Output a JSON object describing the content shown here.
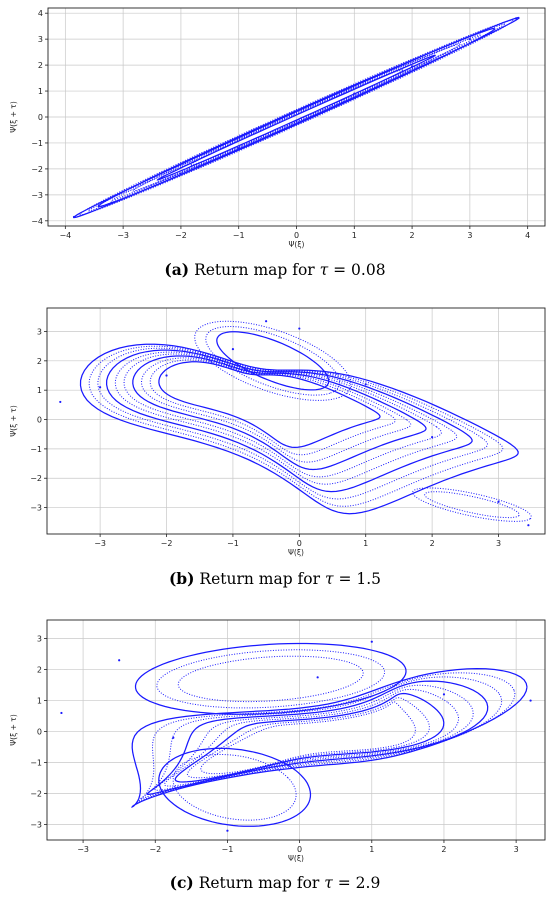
{
  "chart_data": [
    {
      "type": "scatter",
      "xlabel": "Ψ(ξ)",
      "ylabel": "Ψ(ξ + τ)",
      "xlim": [
        -4.3,
        4.3
      ],
      "ylim": [
        -4.2,
        4.2
      ],
      "xticks": [
        -4,
        -3,
        -2,
        -1,
        0,
        1,
        2,
        3,
        4
      ],
      "yticks": [
        -4,
        -3,
        -2,
        -1,
        0,
        1,
        2,
        3,
        4
      ],
      "grid": true,
      "color": "#1a1aff",
      "tau": 0.08,
      "caption": {
        "label": "(a)",
        "text": " Return map for ",
        "symbol": "τ",
        "value": " = 0.08"
      },
      "series": [
        {
          "x": [
            -3.85,
            -3.2,
            -2.0,
            -1.0,
            0.0,
            1.0,
            2.0,
            3.0,
            3.8
          ],
          "y": [
            -3.85,
            -3.3,
            -2.2,
            -1.2,
            -0.15,
            0.9,
            1.95,
            3.0,
            3.8
          ]
        }
      ]
    },
    {
      "type": "scatter",
      "xlabel": "Ψ(ξ)",
      "ylabel": "Ψ(ξ + τ)",
      "xlim": [
        -3.8,
        3.7
      ],
      "ylim": [
        -3.9,
        3.8
      ],
      "xticks": [
        -3,
        -2,
        -1,
        0,
        1,
        2,
        3
      ],
      "yticks": [
        -3,
        -2,
        -1,
        0,
        1,
        2,
        3
      ],
      "grid": true,
      "color": "#1a1aff",
      "tau": 1.5,
      "caption": {
        "label": "(b)",
        "text": " Return map for ",
        "symbol": "τ",
        "value": " = 1.5"
      },
      "series": [
        {
          "x": [
            -3.6,
            -3.0,
            -2.0,
            -1.0,
            -0.5,
            0.0,
            1.0,
            2.0,
            3.0,
            3.45
          ],
          "y": [
            0.6,
            1.1,
            1.5,
            2.4,
            3.35,
            3.1,
            1.2,
            -0.6,
            -2.8,
            -3.6
          ]
        }
      ]
    },
    {
      "type": "scatter",
      "xlabel": "Ψ(ξ)",
      "ylabel": "Ψ(ξ + τ)",
      "xlim": [
        -3.5,
        3.4
      ],
      "ylim": [
        -3.5,
        3.6
      ],
      "xticks": [
        -3,
        -2,
        -1,
        0,
        1,
        2,
        3
      ],
      "yticks": [
        -3,
        -2,
        -1,
        0,
        1,
        2,
        3
      ],
      "grid": true,
      "color": "#1a1aff",
      "tau": 2.9,
      "caption": {
        "label": "(c)",
        "text": " Return map for ",
        "symbol": "τ",
        "value": " = 2.9"
      },
      "series": [
        {
          "x": [
            -3.3,
            -2.5,
            -1.75,
            -1.0,
            0.25,
            1.0,
            2.0,
            3.2
          ],
          "y": [
            0.6,
            2.3,
            -0.2,
            -3.2,
            1.75,
            2.9,
            1.2,
            1.0
          ]
        }
      ]
    }
  ]
}
